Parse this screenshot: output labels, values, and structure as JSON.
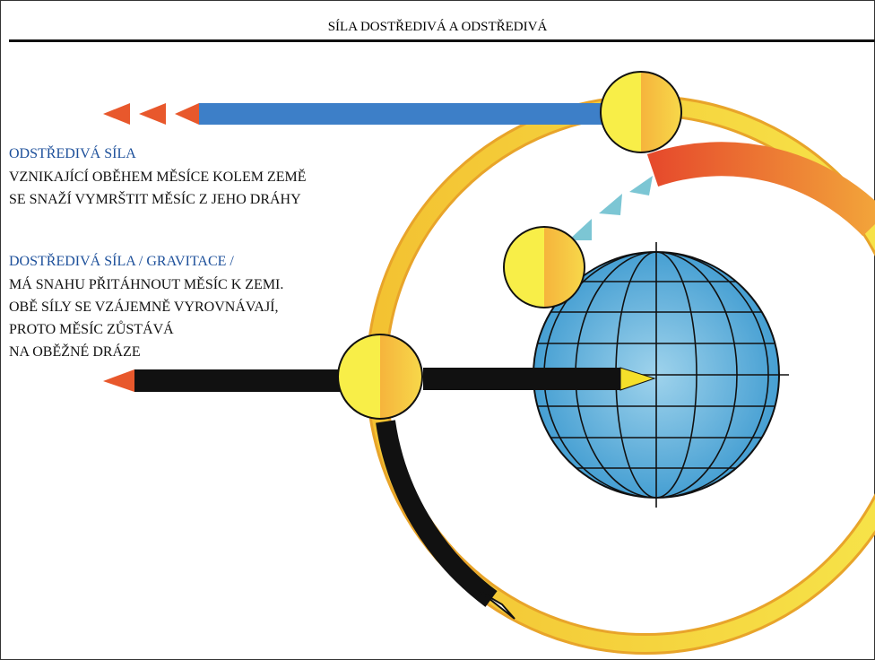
{
  "header": {
    "title": "SÍLA DOSTŘEDIVÁ A ODSTŘEDIVÁ"
  },
  "blocks": [
    {
      "heading": "ODSTŘEDIVÁ SÍLA",
      "lines": [
        "VZNIKAJÍCÍ OBĚHEM MĚSÍCE KOLEM ZEMĚ",
        "SE SNAŽÍ VYMRŠTIT MĚSÍC Z JEHO DRÁHY"
      ]
    },
    {
      "heading": "DOSTŘEDIVÁ SÍLA / GRAVITACE /",
      "lines": [
        "MÁ SNAHU PŘITÁHNOUT MĚSÍC K ZEMI.",
        "OBĚ SÍLY SE VZÁJEMNĚ VYROVNÁVAJÍ,",
        "PROTO MĚSÍC ZŮSTÁVÁ",
        "NA OBĚŽNÉ DRÁZE"
      ]
    }
  ]
}
